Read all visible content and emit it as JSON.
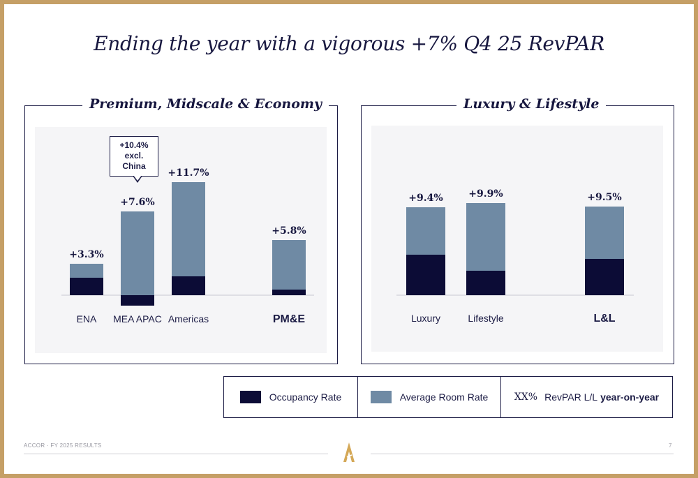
{
  "title": "Ending the year with a vigorous +7% Q4 25 RevPAR",
  "colors": {
    "occupancy": "#0c0c36",
    "average_room_rate": "#6f8aa4",
    "frame": "#c59f66",
    "navy": "#17173f"
  },
  "chart_data": [
    {
      "type": "bar",
      "title": "Premium, Midscale & Economy",
      "categories": [
        "ENA",
        "MEA APAC",
        "Americas",
        "PM&E"
      ],
      "series": [
        {
          "name": "Occupancy Rate",
          "values": [
            2.5,
            -1.5,
            2.7,
            0.8
          ]
        },
        {
          "name": "Average Room Rate",
          "values": [
            2.0,
            12.0,
            13.5,
            7.1
          ]
        }
      ],
      "revpar_labels": [
        "+3.3%",
        "+7.6%",
        "+11.7%",
        "+5.8%"
      ],
      "callout": {
        "category": "MEA APAC",
        "lines": [
          "+10.4%",
          "excl.",
          "China"
        ]
      }
    },
    {
      "type": "bar",
      "title": "Luxury & Lifestyle",
      "categories": [
        "Luxury",
        "Lifestyle",
        "L&L"
      ],
      "series": [
        {
          "name": "Occupancy Rate",
          "values": [
            5.8,
            3.5,
            5.2
          ]
        },
        {
          "name": "Average Room Rate",
          "values": [
            6.8,
            9.7,
            7.5
          ]
        }
      ],
      "revpar_labels": [
        "+9.4%",
        "+9.9%",
        "+9.5%"
      ]
    }
  ],
  "legend": {
    "occupancy_label": "Occupancy Rate",
    "arr_label": "Average Room Rate",
    "xx_label": "XX%",
    "revpar_label": "RevPAR L/L",
    "revpar_bold": "year-on-year"
  },
  "footer": {
    "text": "ACCOR · FY 2025 RESULTS",
    "page": "7"
  }
}
